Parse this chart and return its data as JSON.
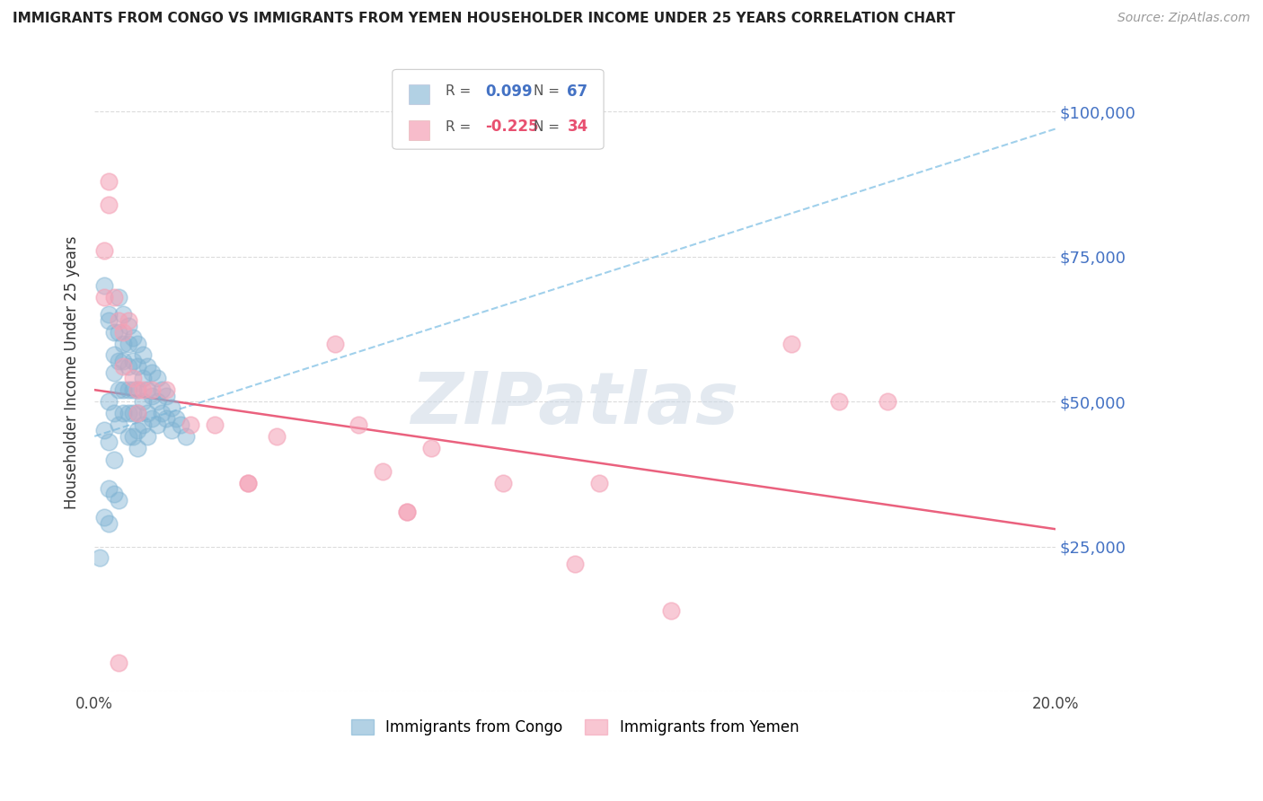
{
  "title": "IMMIGRANTS FROM CONGO VS IMMIGRANTS FROM YEMEN HOUSEHOLDER INCOME UNDER 25 YEARS CORRELATION CHART",
  "source": "Source: ZipAtlas.com",
  "ylabel": "Householder Income Under 25 years",
  "xlim": [
    0.0,
    0.2
  ],
  "ylim": [
    0,
    110000
  ],
  "congo_R": 0.099,
  "congo_N": 67,
  "yemen_R": -0.225,
  "yemen_N": 34,
  "congo_color": "#7fb3d3",
  "yemen_color": "#f4a0b5",
  "trend_congo_color": "#90c8e8",
  "trend_yemen_color": "#e85070",
  "watermark": "ZIPatlas",
  "watermark_color": "#ccd8e5",
  "background_color": "#ffffff",
  "grid_color": "#cccccc",
  "right_axis_color": "#4472c4",
  "congo_x": [
    0.001,
    0.002,
    0.002,
    0.003,
    0.003,
    0.003,
    0.003,
    0.004,
    0.004,
    0.004,
    0.004,
    0.004,
    0.005,
    0.005,
    0.005,
    0.005,
    0.005,
    0.006,
    0.006,
    0.006,
    0.006,
    0.006,
    0.007,
    0.007,
    0.007,
    0.007,
    0.007,
    0.007,
    0.008,
    0.008,
    0.008,
    0.008,
    0.008,
    0.009,
    0.009,
    0.009,
    0.009,
    0.009,
    0.009,
    0.01,
    0.01,
    0.01,
    0.01,
    0.011,
    0.011,
    0.011,
    0.011,
    0.012,
    0.012,
    0.012,
    0.013,
    0.013,
    0.013,
    0.014,
    0.014,
    0.015,
    0.015,
    0.016,
    0.016,
    0.017,
    0.018,
    0.019,
    0.003,
    0.004,
    0.005,
    0.002,
    0.003
  ],
  "congo_y": [
    23000,
    70000,
    45000,
    65000,
    64000,
    50000,
    43000,
    62000,
    58000,
    55000,
    48000,
    40000,
    68000,
    62000,
    57000,
    52000,
    46000,
    65000,
    60000,
    57000,
    52000,
    48000,
    63000,
    60000,
    56000,
    52000,
    48000,
    44000,
    61000,
    57000,
    52000,
    48000,
    44000,
    60000,
    56000,
    52000,
    48000,
    45000,
    42000,
    58000,
    54000,
    50000,
    46000,
    56000,
    52000,
    48000,
    44000,
    55000,
    51000,
    47000,
    54000,
    50000,
    46000,
    52000,
    48000,
    51000,
    47000,
    49000,
    45000,
    47000,
    46000,
    44000,
    35000,
    34000,
    33000,
    30000,
    29000
  ],
  "yemen_x": [
    0.002,
    0.002,
    0.003,
    0.003,
    0.004,
    0.005,
    0.006,
    0.006,
    0.007,
    0.008,
    0.009,
    0.009,
    0.01,
    0.012,
    0.015,
    0.02,
    0.025,
    0.032,
    0.032,
    0.038,
    0.05,
    0.055,
    0.06,
    0.065,
    0.065,
    0.07,
    0.085,
    0.1,
    0.105,
    0.12,
    0.145,
    0.155,
    0.165,
    0.005
  ],
  "yemen_y": [
    76000,
    68000,
    88000,
    84000,
    68000,
    64000,
    62000,
    56000,
    64000,
    54000,
    52000,
    48000,
    52000,
    52000,
    52000,
    46000,
    46000,
    36000,
    36000,
    44000,
    60000,
    46000,
    38000,
    31000,
    31000,
    42000,
    36000,
    22000,
    36000,
    14000,
    60000,
    50000,
    50000,
    5000
  ],
  "congo_trend_x0": 0.0,
  "congo_trend_x1": 0.2,
  "congo_trend_y0": 44000,
  "congo_trend_y1": 97000,
  "yemen_trend_x0": 0.0,
  "yemen_trend_x1": 0.2,
  "yemen_trend_y0": 52000,
  "yemen_trend_y1": 28000
}
